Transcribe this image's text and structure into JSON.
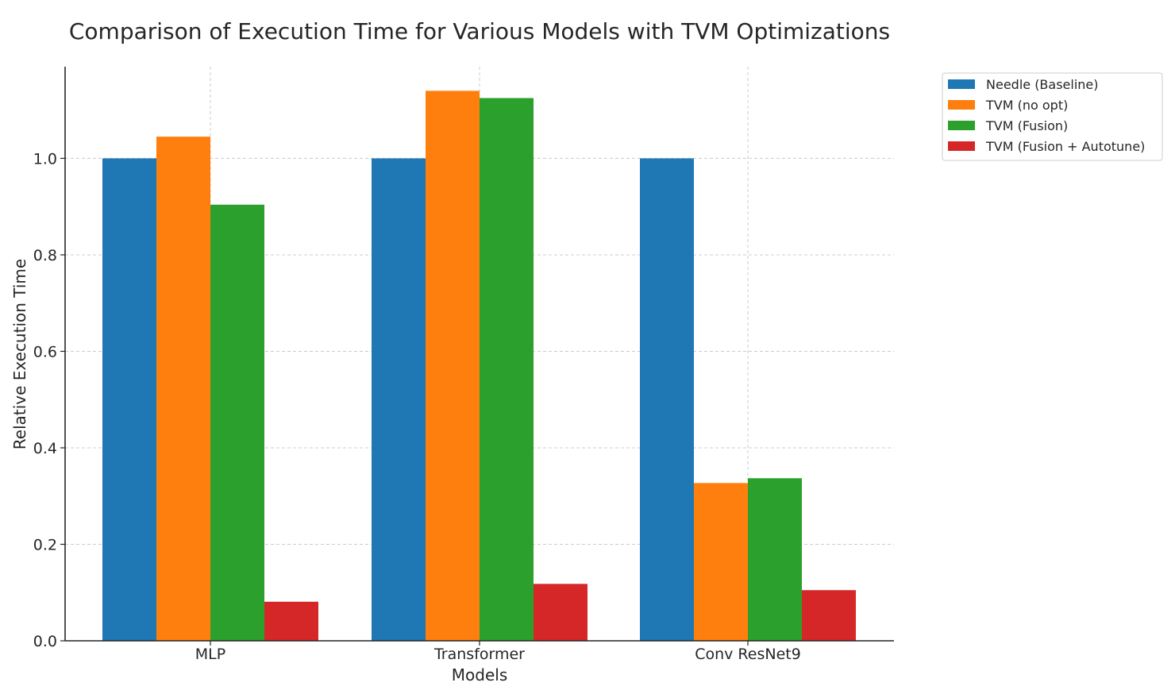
{
  "chart_data": {
    "type": "bar",
    "title": "Comparison of Execution Time for Various Models with TVM Optimizations",
    "xlabel": "Models",
    "ylabel": "Relative Execution Time",
    "categories": [
      "MLP",
      "Transformer",
      "Conv ResNet9"
    ],
    "ylim": [
      0,
      1.19
    ],
    "yticks": [
      0.0,
      0.2,
      0.4,
      0.6,
      0.8,
      1.0
    ],
    "ytick_labels": [
      "0.0",
      "0.2",
      "0.4",
      "0.6",
      "0.8",
      "1.0"
    ],
    "grid": true,
    "legend_position": "outside-top-right",
    "series": [
      {
        "name": "Needle (Baseline)",
        "color": "#1f77b4",
        "values": [
          1.0,
          1.0,
          1.0
        ]
      },
      {
        "name": "TVM (no opt)",
        "color": "#ff7f0e",
        "values": [
          1.045,
          1.14,
          0.327
        ]
      },
      {
        "name": "TVM (Fusion)",
        "color": "#2ca02c",
        "values": [
          0.904,
          1.125,
          0.337
        ]
      },
      {
        "name": "TVM (Fusion + Autotune)",
        "color": "#d62728",
        "values": [
          0.081,
          0.118,
          0.105
        ]
      }
    ]
  }
}
